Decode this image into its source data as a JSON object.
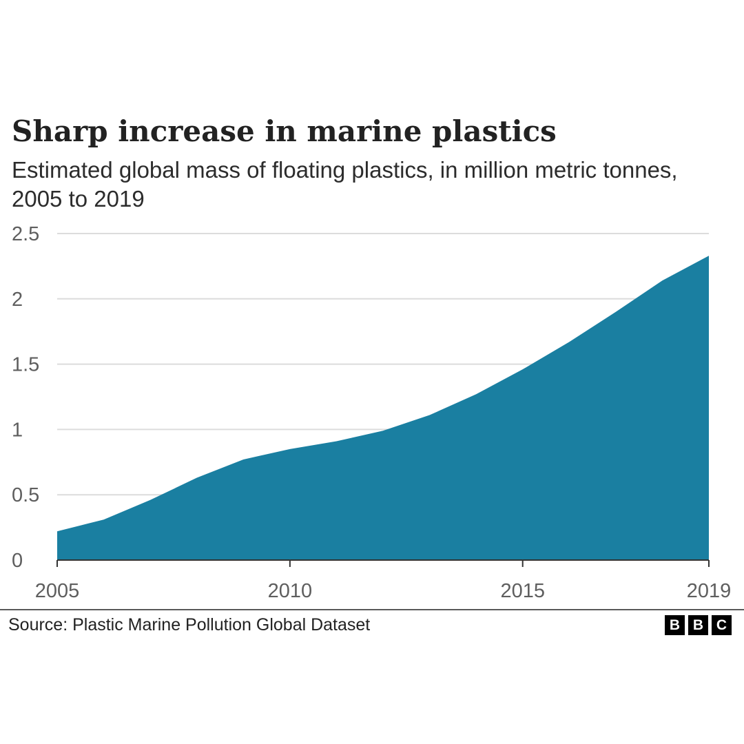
{
  "title": "Sharp increase in marine plastics",
  "subtitle": "Estimated global mass of floating plastics, in million metric tonnes, 2005 to 2019",
  "source": "Source: Plastic Marine Pollution Global Dataset",
  "logo": [
    "B",
    "B",
    "C"
  ],
  "colors": {
    "area": "#1a7fa1",
    "grid": "#dcdcdc",
    "axis": "#333333",
    "tick_text": "#5e5e5e"
  },
  "chart_data": {
    "type": "area",
    "title": "Sharp increase in marine plastics",
    "subtitle": "Estimated global mass of floating plastics, in million metric tonnes, 2005 to 2019",
    "x": [
      2005,
      2006,
      2007,
      2008,
      2009,
      2010,
      2011,
      2012,
      2013,
      2014,
      2015,
      2016,
      2017,
      2018,
      2019
    ],
    "values": [
      0.22,
      0.31,
      0.46,
      0.63,
      0.77,
      0.85,
      0.91,
      0.99,
      1.11,
      1.27,
      1.46,
      1.67,
      1.9,
      2.14,
      2.33
    ],
    "xlim": [
      2005,
      2019
    ],
    "ylim": [
      0,
      2.5
    ],
    "x_ticks": [
      "2005",
      "2010",
      "2015",
      "2019"
    ],
    "y_ticks": [
      "0",
      "0.5",
      "1",
      "1.5",
      "2",
      "2.5"
    ],
    "xlabel": "",
    "ylabel": "",
    "grid": true,
    "legend": "none"
  }
}
